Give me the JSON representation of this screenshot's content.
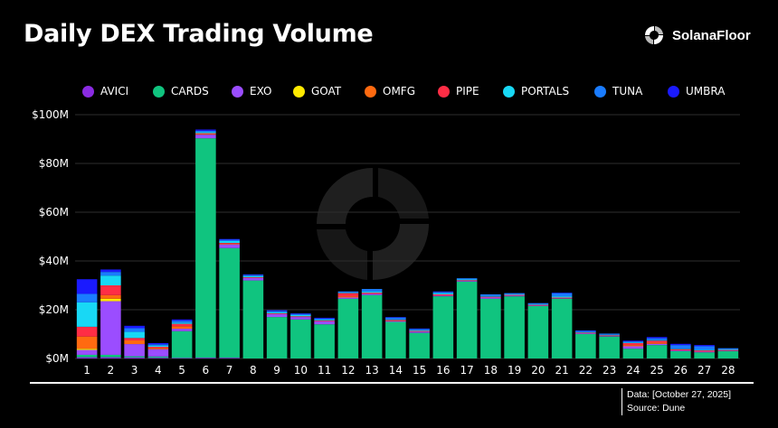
{
  "title": "Daily DEX Trading Volume",
  "brand": {
    "name": "SolanaFloor",
    "icon": "solanafloor-logo-icon"
  },
  "footer": {
    "date": "Data: [October 27, 2025]",
    "source": "Source: Dune"
  },
  "colors": {
    "AVICI": "#8a2be2",
    "CARDS": "#10c47f",
    "EXO": "#9b4dff",
    "GOAT": "#ffea00",
    "OMFG": "#ff6a10",
    "PIPE": "#ff2d45",
    "PORTALS": "#18d8f5",
    "TUNA": "#1a7cff",
    "UMBRA": "#1a1aff",
    "grid": "#2e2e2e",
    "background": "#000000"
  },
  "chart_data": {
    "type": "bar",
    "stacked": true,
    "categories": [
      "1",
      "2",
      "3",
      "4",
      "5",
      "6",
      "7",
      "8",
      "9",
      "10",
      "11",
      "12",
      "13",
      "14",
      "15",
      "16",
      "17",
      "18",
      "19",
      "20",
      "21",
      "22",
      "23",
      "24",
      "25",
      "26",
      "27",
      "28"
    ],
    "ylim": [
      0,
      100
    ],
    "yticks": [
      "$0M",
      "$20M",
      "$40M",
      "$60M",
      "$80M",
      "$100M"
    ],
    "ytick_values": [
      0,
      20,
      40,
      60,
      80,
      100
    ],
    "grid": true,
    "legend_position": "top",
    "series": [
      {
        "name": "AVICI",
        "values": [
          0.5,
          0.5,
          0.4,
          0.3,
          0.2,
          0.3,
          0.3,
          0,
          0,
          0,
          0,
          0,
          0,
          0,
          0,
          0,
          0,
          0,
          0,
          0,
          0,
          0,
          0,
          0,
          0,
          0,
          0,
          0
        ]
      },
      {
        "name": "CARDS",
        "values": [
          1,
          1,
          0.5,
          0.5,
          11,
          90,
          45,
          32,
          17,
          16,
          14,
          24.5,
          26,
          15,
          10.5,
          25.5,
          31.5,
          24.5,
          25.5,
          21.5,
          24.5,
          10,
          9,
          4,
          5.5,
          3,
          2.5,
          3
        ]
      },
      {
        "name": "EXO",
        "values": [
          2,
          22,
          5,
          3,
          1,
          1.5,
          1.5,
          1,
          1.2,
          1,
          1.3,
          0.5,
          0.5,
          0.3,
          0.5,
          0.3,
          0.3,
          0.5,
          0.3,
          0.2,
          0.2,
          0.3,
          0.2,
          1,
          0.5,
          0.3,
          0.3,
          0.2
        ]
      },
      {
        "name": "GOAT",
        "values": [
          0.5,
          1,
          0,
          0,
          0,
          0,
          0,
          0,
          0,
          0,
          0,
          0,
          0,
          0,
          0,
          0,
          0,
          0,
          0,
          0,
          0,
          0,
          0,
          0,
          0,
          0,
          0,
          0
        ]
      },
      {
        "name": "OMFG",
        "values": [
          5,
          1.5,
          1.5,
          0.5,
          1,
          0.3,
          0.3,
          0,
          0,
          0,
          0,
          0.5,
          0,
          0,
          0,
          0,
          0,
          0,
          0,
          0,
          0,
          0,
          0,
          0.5,
          0.5,
          0,
          0,
          0
        ]
      },
      {
        "name": "PIPE",
        "values": [
          4,
          4,
          1,
          0.5,
          1,
          0.3,
          0.3,
          0.3,
          0.3,
          0.3,
          0.3,
          1.3,
          0.5,
          0.5,
          0.3,
          0.5,
          0.3,
          0.3,
          0.3,
          0.3,
          0.3,
          0.3,
          0.3,
          0.8,
          0.8,
          0.5,
          0.5,
          0.3
        ]
      },
      {
        "name": "PORTALS",
        "values": [
          10,
          4,
          2.5,
          0.5,
          0.5,
          0.5,
          0.8,
          0.5,
          0.5,
          0.5,
          0.3,
          0.2,
          0.5,
          0.2,
          0.3,
          0.5,
          0.3,
          0.2,
          0.2,
          0.2,
          0.5,
          0.2,
          0.2,
          0.2,
          0.2,
          0.2,
          0.2,
          0.2
        ]
      },
      {
        "name": "TUNA",
        "values": [
          3.5,
          1.5,
          1.5,
          0.5,
          0.8,
          0.5,
          0.5,
          0.5,
          0.5,
          0.5,
          0.5,
          0.5,
          1,
          0.8,
          0.5,
          0.5,
          0.5,
          0.8,
          0.5,
          0.5,
          1.3,
          0.5,
          0.5,
          0.5,
          0.8,
          1.5,
          1.5,
          0.5
        ]
      },
      {
        "name": "UMBRA",
        "values": [
          6,
          1,
          1,
          0.5,
          0.5,
          0.5,
          0.3,
          0.2,
          0.3,
          0.2,
          0.3,
          0,
          0,
          0.2,
          0.2,
          0.2,
          0,
          0,
          0,
          0,
          0.2,
          0.2,
          0,
          0.3,
          0.5,
          0.5,
          0.5,
          0
        ]
      }
    ]
  }
}
